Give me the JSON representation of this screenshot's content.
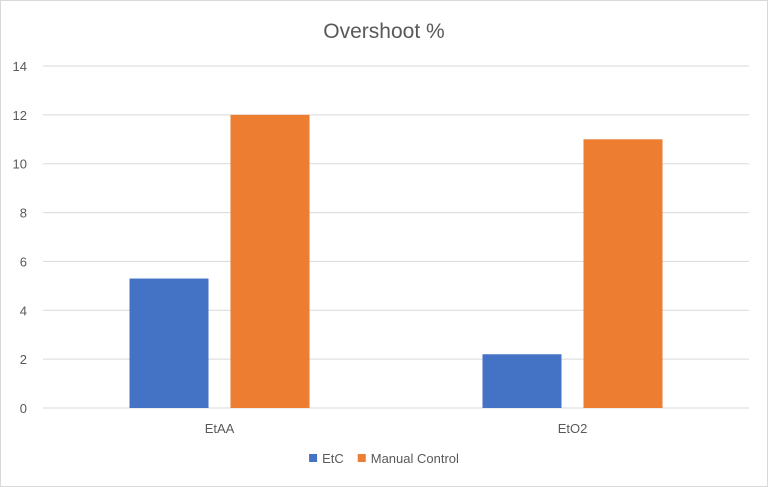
{
  "chart_data": {
    "type": "bar",
    "title": "Overshoot %",
    "xlabel": "",
    "ylabel": "",
    "categories": [
      "EtAA",
      "EtO2"
    ],
    "series": [
      {
        "name": "EtC",
        "values": [
          5.3,
          2.2
        ],
        "color": "#4472c4"
      },
      {
        "name": "Manual Control",
        "values": [
          12,
          11
        ],
        "color": "#ed7d31"
      }
    ],
    "ylim": [
      0,
      14
    ],
    "yticks": [
      0,
      2,
      4,
      6,
      8,
      10,
      12,
      14
    ],
    "grid": true,
    "legend_position": "bottom"
  }
}
